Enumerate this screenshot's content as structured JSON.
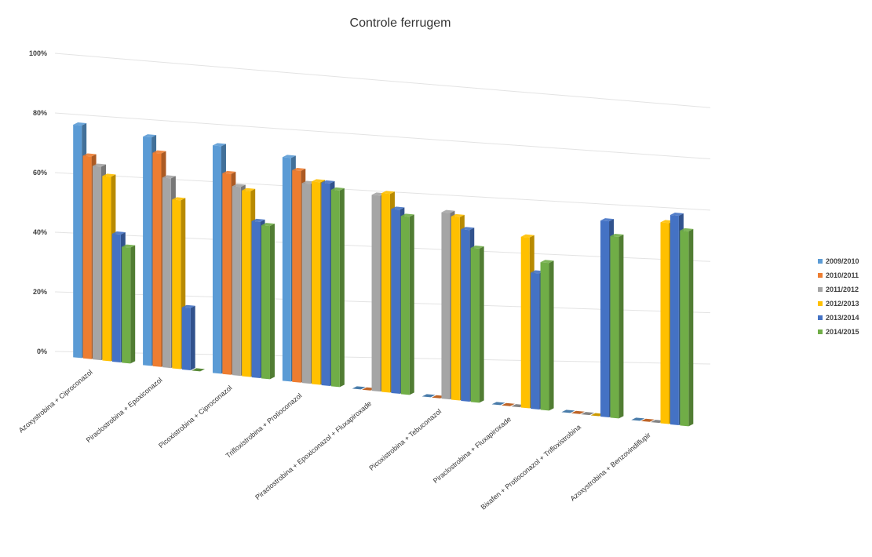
{
  "chart_data": {
    "type": "bar",
    "title": "Controle ferrugem",
    "xlabel": "",
    "ylabel": "",
    "ylim": [
      0,
      100
    ],
    "yticks": [
      "0%",
      "20%",
      "40%",
      "60%",
      "80%",
      "100%"
    ],
    "grid": true,
    "legend_position": "right",
    "categories": [
      "Azoxystrobina + Ciproconazol",
      "Piraclostrobina + Epoxiconazol",
      "Picoxistrobina + Ciproconazol",
      "Trifloxistrobina + Protioconazol",
      "Piraclostrobina + Epoxiconazol + Fluxapiroxade",
      "Picoxistrobina + Tebuconazol",
      "Piraclostrobina + Fluxapiroxade",
      "Bixafen + Protioconazol + Trifloxistrobina",
      "Azoxystrobina + Benzovindiflupir"
    ],
    "series": [
      {
        "name": "2009/2010",
        "color": "#5B9BD5",
        "values": [
          78,
          77,
          77,
          76,
          0,
          0,
          0,
          0,
          0
        ]
      },
      {
        "name": "2010/2011",
        "color": "#ED7D31",
        "values": [
          68,
          72,
          68,
          72,
          0,
          0,
          0,
          0,
          0
        ]
      },
      {
        "name": "2011/2012",
        "color": "#A5A5A5",
        "values": [
          65,
          64,
          64,
          68,
          67,
          64,
          0,
          0,
          0
        ]
      },
      {
        "name": "2012/2013",
        "color": "#FFC000",
        "values": [
          62,
          57,
          63,
          69,
          68,
          63,
          59,
          0,
          70
        ]
      },
      {
        "name": "2013/2014",
        "color": "#4472C4",
        "values": [
          43,
          21,
          53,
          69,
          63,
          59,
          47,
          68,
          73
        ]
      },
      {
        "name": "2014/2015",
        "color": "#70AD47",
        "values": [
          39,
          0,
          52,
          67,
          61,
          53,
          51,
          63,
          68
        ]
      }
    ]
  }
}
